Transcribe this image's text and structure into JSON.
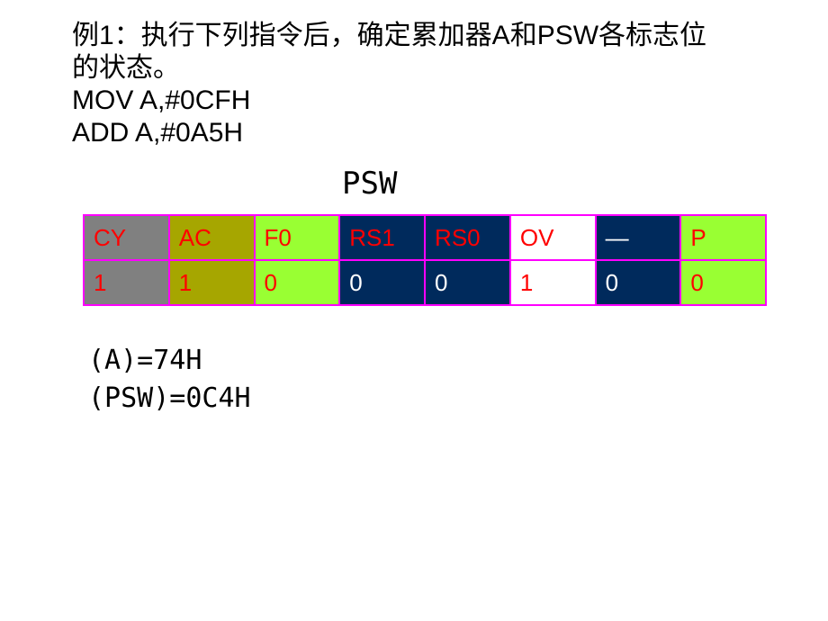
{
  "problem": {
    "line1": "例1：执行下列指令后，确定累加器A和PSW各标志位",
    "line2": "的状态。",
    "line3": "MOV A,#0CFH",
    "line4": "ADD A,#0A5H"
  },
  "psw_heading": "PSW",
  "psw_table": {
    "header": [
      "CY",
      "AC",
      "F0",
      "RS1",
      "RS0",
      "OV",
      "—",
      "P"
    ],
    "values": [
      "1",
      "1",
      "0",
      "0",
      "0",
      "1",
      "0",
      "0"
    ],
    "header_bg": [
      "#808080",
      "#a6a600",
      "#99ff33",
      "#002a5c",
      "#002a5c",
      "#ffffff",
      "#002a5c",
      "#99ff33"
    ],
    "header_fg": [
      "#ff0000",
      "#ff0000",
      "#ff0000",
      "#ff0000",
      "#ff0000",
      "#ff0000",
      "#ffffff",
      "#ff0000"
    ],
    "value_bg": [
      "#808080",
      "#a6a600",
      "#99ff33",
      "#002a5c",
      "#002a5c",
      "#ffffff",
      "#002a5c",
      "#99ff33"
    ],
    "value_fg": [
      "#ff0000",
      "#ff0000",
      "#ff0000",
      "#ffffff",
      "#ffffff",
      "#ff0000",
      "#ffffff",
      "#ff0000"
    ]
  },
  "result": {
    "line1": "(A)=74H",
    "line2": "(PSW)=0C4H"
  }
}
